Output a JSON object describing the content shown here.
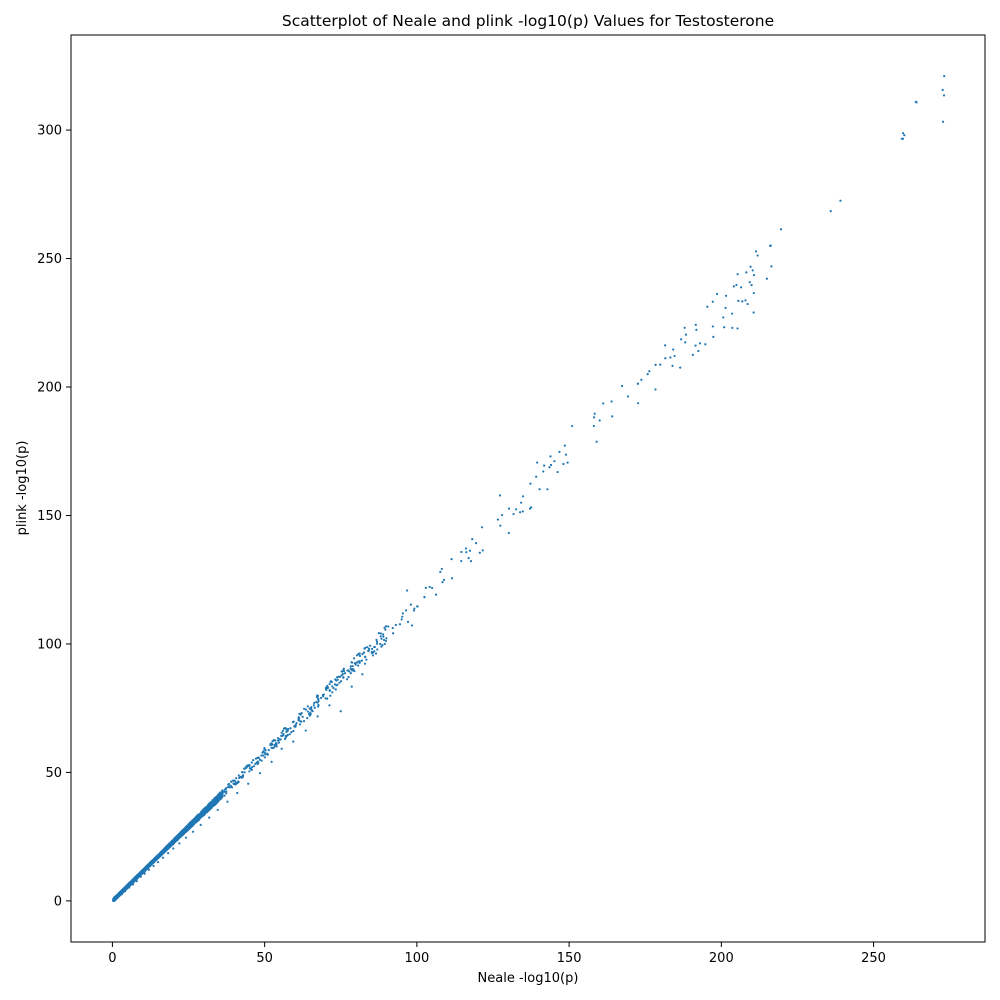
{
  "chart_data": {
    "type": "scatter",
    "title": "Scatterplot of Neale and plink -log10(p) Values for Testosterone",
    "xlabel": "Neale -log10(p)",
    "ylabel": "plink -log10(p)",
    "xlim": [
      -13.6,
      286.6
    ],
    "ylim": [
      -16.0,
      337.0
    ],
    "xticks": [
      0,
      50,
      100,
      150,
      200,
      250
    ],
    "yticks": [
      0,
      50,
      100,
      150,
      200,
      250,
      300
    ],
    "xtick_labels": [
      "0",
      "50",
      "100",
      "150",
      "200",
      "250"
    ],
    "ytick_labels": [
      "0",
      "50",
      "100",
      "150",
      "200",
      "250",
      "300"
    ],
    "grid": false,
    "legend": "none",
    "marker_color": "#1f77b4",
    "series": [
      {
        "points": [
          [
            0.3,
            0.4
          ],
          [
            0.8,
            0.6
          ],
          [
            1.2,
            1.5
          ],
          [
            1.8,
            1.4
          ],
          [
            2.5,
            2.8
          ],
          [
            3.1,
            2.6
          ],
          [
            3.6,
            4.0
          ],
          [
            4.2,
            3.8
          ],
          [
            4.9,
            5.6
          ],
          [
            5.5,
            5.2
          ],
          [
            6.1,
            6.8
          ],
          [
            6.8,
            6.4
          ],
          [
            7.4,
            8.3
          ],
          [
            8.0,
            7.7
          ],
          [
            8.7,
            9.9
          ],
          [
            9.3,
            9.4
          ],
          [
            10.0,
            11.2
          ],
          [
            10.6,
            10.6
          ],
          [
            11.3,
            12.8
          ],
          [
            12.0,
            12.1
          ],
          [
            12.8,
            14.4
          ],
          [
            13.5,
            13.6
          ],
          [
            14.3,
            16.0
          ],
          [
            15.0,
            15.1
          ],
          [
            15.8,
            17.8
          ],
          [
            16.6,
            16.8
          ],
          [
            17.4,
            19.6
          ],
          [
            18.3,
            18.6
          ],
          [
            19.1,
            21.4
          ],
          [
            20.0,
            20.4
          ],
          [
            21.0,
            23.6
          ],
          [
            22.0,
            22.4
          ],
          [
            23.0,
            25.9
          ],
          [
            24.2,
            24.6
          ],
          [
            25.3,
            28.4
          ],
          [
            26.5,
            26.9
          ],
          [
            27.7,
            31.0
          ],
          [
            29.0,
            29.6
          ],
          [
            30.4,
            34.2
          ],
          [
            31.8,
            32.4
          ],
          [
            33.2,
            37.4
          ],
          [
            34.6,
            35.4
          ],
          [
            36.1,
            40.6
          ],
          [
            37.8,
            38.6
          ],
          [
            39.3,
            44.2
          ],
          [
            41.0,
            42.0
          ],
          [
            42.8,
            48.1
          ],
          [
            44.6,
            45.6
          ],
          [
            46.5,
            52.4
          ],
          [
            48.5,
            49.7
          ],
          [
            50.2,
            57.0
          ],
          [
            52.3,
            54.1
          ],
          [
            53.8,
            61.4
          ],
          [
            55.6,
            59.2
          ],
          [
            57.1,
            65.8
          ],
          [
            59.4,
            62.0
          ],
          [
            61.2,
            70.4
          ],
          [
            63.5,
            66.3
          ],
          [
            65.3,
            74.9
          ],
          [
            67.4,
            71.8
          ],
          [
            69.2,
            79.6
          ],
          [
            71.3,
            76.1
          ],
          [
            73.1,
            84.3
          ],
          [
            75.0,
            73.8
          ],
          [
            76.4,
            88.6
          ],
          [
            78.6,
            83.4
          ],
          [
            80.3,
            92.7
          ],
          [
            82.1,
            88.2
          ],
          [
            84.0,
            97.3
          ],
          [
            86.2,
            98.8
          ],
          [
            88.4,
            102.0
          ],
          [
            90.6,
            106.8
          ],
          [
            93.1,
            107.4
          ],
          [
            95.2,
            110.6
          ],
          [
            96.8,
            120.8
          ],
          [
            98.4,
            107.2
          ],
          [
            100.1,
            114.6
          ],
          [
            102.5,
            118.2
          ],
          [
            105.0,
            121.8
          ],
          [
            108.2,
            129.2
          ],
          [
            111.4,
            133.0
          ],
          [
            114.6,
            135.8
          ],
          [
            117.0,
            133.4
          ],
          [
            118.2,
            140.8
          ],
          [
            121.4,
            145.4
          ],
          [
            127.3,
            157.8
          ],
          [
            130.2,
            143.2
          ],
          [
            132.6,
            152.4
          ],
          [
            134.8,
            151.6
          ],
          [
            137.3,
            162.4
          ],
          [
            139.5,
            170.6
          ],
          [
            141.8,
            169.4
          ],
          [
            143.9,
            173.0
          ],
          [
            146.2,
            166.9
          ],
          [
            148.6,
            177.2
          ],
          [
            151.0,
            184.8
          ],
          [
            158.4,
            189.6
          ],
          [
            161.2,
            193.6
          ],
          [
            167.4,
            200.4
          ],
          [
            172.6,
            201.3
          ],
          [
            175.8,
            205.0
          ],
          [
            178.4,
            208.6
          ],
          [
            181.6,
            211.2
          ],
          [
            184.2,
            214.6
          ],
          [
            186.8,
            218.6
          ],
          [
            188.4,
            220.4
          ],
          [
            191.6,
            224.2
          ],
          [
            193.0,
            217.0
          ],
          [
            197.2,
            233.2
          ],
          [
            198.6,
            236.2
          ],
          [
            201.4,
            230.8
          ],
          [
            203.6,
            223.0
          ],
          [
            205.3,
            222.8
          ],
          [
            206.5,
            238.8
          ],
          [
            208.2,
            244.6
          ],
          [
            209.6,
            246.8
          ],
          [
            210.6,
            229.0
          ],
          [
            211.4,
            252.8
          ],
          [
            216.0,
            255.0
          ],
          [
            219.6,
            261.4
          ],
          [
            259.3,
            296.6
          ],
          [
            260.1,
            298.0
          ],
          [
            272.7,
            315.6
          ],
          [
            273.2,
            321.0
          ]
        ]
      }
    ]
  }
}
